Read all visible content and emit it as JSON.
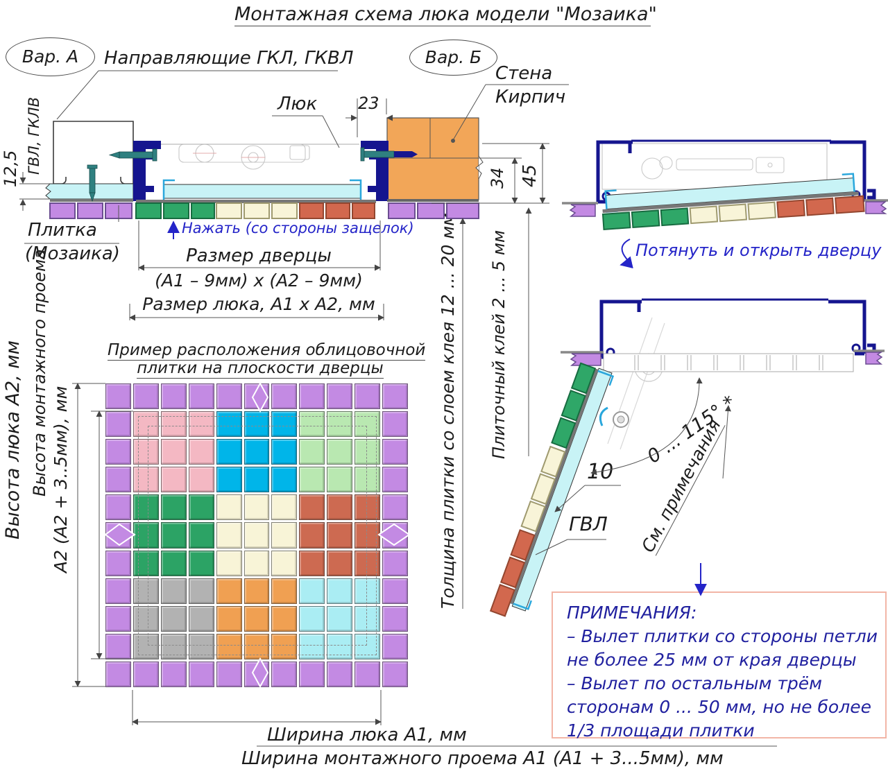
{
  "title": "Монтажная схема люка модели \"Мозаика\"",
  "variants": {
    "a": "Вар. А",
    "b": "Вар. Б"
  },
  "labels": {
    "guides": "Направляющие ГКЛ, ГКВЛ",
    "hatch": "Люк",
    "wall_line1": "Стена",
    "wall_line2": "Кирпич",
    "gvl_gklv": "ГВЛ, ГКЛВ",
    "tile_line1": "Плитка",
    "tile_line2": "(Мозаика)",
    "press": "Нажать (со стороны защелок)",
    "door_size": "Размер дверцы",
    "door_size_formula": "(А1 – 9мм) х (А2 – 9мм)",
    "hatch_size": "Размер люка, А1 х А2, мм",
    "tile_thickness": "Толщина плитки со слоем клея 12 ... 20 мм",
    "tile_glue": "Плиточный клей 2 ... 5 мм",
    "pull": "Потянуть и открыть дверцу",
    "example_line1": "Пример расположения облицовочной",
    "example_line2": "плитки на плоскости дверцы",
    "height_hatch": "Высота люка А2, мм",
    "height_opening_line1": "Высота монтажного проема",
    "height_opening_line2": "А2 (А2 + 3..5мм), мм",
    "angle": "0 ... 115° *",
    "ten": "10",
    "gvl": "ГВЛ",
    "see_notes": "См. примечания",
    "width_hatch": "Ширина люка А1, мм",
    "width_opening": "Ширина монтажного проема А1 (А1 + 3...5мм), мм"
  },
  "dimensions": {
    "d23": "23",
    "d125": "12,5",
    "d34": "34",
    "d45": "45"
  },
  "notes": {
    "title": "ПРИМЕЧАНИЯ:",
    "lines": [
      "– Вылет плитки со стороны петли",
      "не более 25 мм от края дверцы",
      "– Вылет по остальным трём",
      "сторонам 0 ... 50 мм, но не более",
      "1/3 площади плитки"
    ]
  },
  "tile_grid": {
    "rows": 11,
    "cols": 11,
    "border_color": "#c38ae3",
    "blocks": [
      [
        "#f4b8c3",
        "#00b5e9",
        "#b9e8b1"
      ],
      [
        "#2ca365",
        "#f8f4d7",
        "#cd6a51"
      ],
      [
        "#b2b2b2",
        "#f0a052",
        "#aaedf3"
      ]
    ]
  },
  "colors": {
    "frame_navy": "#15158f",
    "board_cyan": "#c8f3f6",
    "glue_gray": "#777777",
    "tile_purple": "#c38ae3",
    "tile_green": "#2fa768",
    "tile_cream": "#f8f4d8",
    "tile_red": "#d2684e",
    "brick_orange": "#f2a658",
    "screw_teal": "#2f8080",
    "clip_blue": "#2aa7dc",
    "annotation_blue": "#2424c8",
    "notes_border": "#f2b5a6",
    "notes_text": "#20209f"
  }
}
